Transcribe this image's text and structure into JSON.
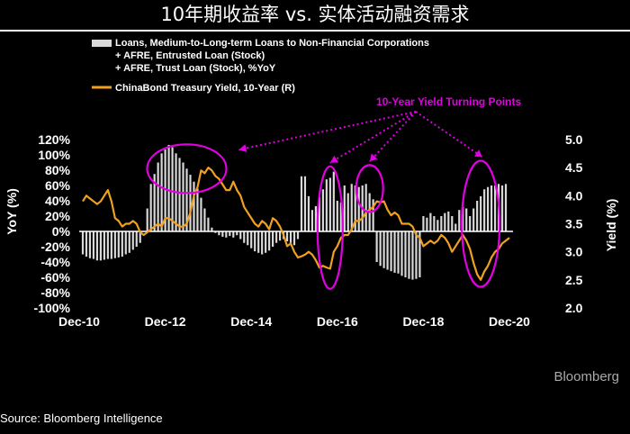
{
  "title": "10年期收益率 vs. 实体活动融资需求",
  "source": "Source: Bloomberg Intelligence",
  "brand": "Bloomberg",
  "colors": {
    "background": "#000000",
    "bars": "#d9d9d9",
    "line": "#f0a020",
    "annotation": "#e100e1",
    "text": "#ffffff"
  },
  "chart_data": {
    "type": "bar+line",
    "legend": [
      {
        "lines": [
          "Loans, Medium-to-Long-term Loans to Non-Financial Corporations",
          "+ AFRE, Entrusted Loan (Stock)",
          "+ AFRE, Trust Loan (Stock), %YoY"
        ],
        "marker": "bar"
      },
      {
        "lines": [
          "ChinaBond Treasury Yield, 10-Year (R)"
        ],
        "marker": "line"
      }
    ],
    "ylabel_left": "YoY (%)",
    "ylabel_right": "Yield (%)",
    "y_left_ticks": [
      "120%",
      "100%",
      "80%",
      "60%",
      "40%",
      "20%",
      "0%",
      "-20%",
      "-40%",
      "-60%",
      "-80%",
      "-100%"
    ],
    "y_left_lim": [
      -100,
      120
    ],
    "y_right_ticks": [
      "5.0",
      "4.5",
      "4.0",
      "3.5",
      "3.0",
      "2.5",
      "2.0"
    ],
    "y_right_lim": [
      2.0,
      5.0
    ],
    "x_ticks": [
      "Dec-10",
      "Dec-12",
      "Dec-14",
      "Dec-16",
      "Dec-18",
      "Dec-20"
    ],
    "x_range": [
      "2010-12",
      "2021-01"
    ],
    "annotation": "10-Year Yield Turning Points",
    "bars": {
      "name": "Loans, Medium-to-Long-term Loans to Non-Financial Corporations + AFRE, Entrusted Loan (Stock) + AFRE, Trust Loan (Stock), %YoY",
      "x": [
        "2011-01",
        "2011-02",
        "2011-03",
        "2011-04",
        "2011-05",
        "2011-06",
        "2011-07",
        "2011-08",
        "2011-09",
        "2011-10",
        "2011-11",
        "2011-12",
        "2012-01",
        "2012-02",
        "2012-03",
        "2012-04",
        "2012-05",
        "2012-06",
        "2012-07",
        "2012-08",
        "2012-09",
        "2012-10",
        "2012-11",
        "2012-12",
        "2013-01",
        "2013-02",
        "2013-03",
        "2013-04",
        "2013-05",
        "2013-06",
        "2013-07",
        "2013-08",
        "2013-09",
        "2013-10",
        "2013-11",
        "2013-12",
        "2014-01",
        "2014-02",
        "2014-03",
        "2014-04",
        "2014-05",
        "2014-06",
        "2014-07",
        "2014-08",
        "2014-09",
        "2014-10",
        "2014-11",
        "2014-12",
        "2015-01",
        "2015-02",
        "2015-03",
        "2015-04",
        "2015-05",
        "2015-06",
        "2015-07",
        "2015-08",
        "2015-09",
        "2015-10",
        "2015-11",
        "2015-12",
        "2016-01",
        "2016-02",
        "2016-03",
        "2016-04",
        "2016-05",
        "2016-06",
        "2016-07",
        "2016-08",
        "2016-09",
        "2016-10",
        "2016-11",
        "2016-12",
        "2017-01",
        "2017-02",
        "2017-03",
        "2017-04",
        "2017-05",
        "2017-06",
        "2017-07",
        "2017-08",
        "2017-09",
        "2017-10",
        "2017-11",
        "2017-12",
        "2018-01",
        "2018-02",
        "2018-03",
        "2018-04",
        "2018-05",
        "2018-06",
        "2018-07",
        "2018-08",
        "2018-09",
        "2018-10",
        "2018-11",
        "2018-12",
        "2019-01",
        "2019-02",
        "2019-03",
        "2019-04",
        "2019-05",
        "2019-06",
        "2019-07",
        "2019-08",
        "2019-09",
        "2019-10",
        "2019-11",
        "2019-12",
        "2020-01",
        "2020-02",
        "2020-03",
        "2020-04",
        "2020-05",
        "2020-06",
        "2020-07",
        "2020-08",
        "2020-09",
        "2020-10",
        "2020-11",
        "2020-12"
      ],
      "values": [
        -30,
        -33,
        -35,
        -36,
        -38,
        -38,
        -37,
        -36,
        -36,
        -35,
        -34,
        -33,
        -30,
        -28,
        -24,
        -20,
        -15,
        0,
        30,
        62,
        75,
        90,
        102,
        107,
        113,
        110,
        102,
        96,
        90,
        82,
        74,
        65,
        56,
        44,
        30,
        18,
        5,
        -2,
        -5,
        -7,
        -8,
        -6,
        -8,
        -5,
        -10,
        -15,
        -18,
        -22,
        -26,
        -28,
        -30,
        -28,
        -25,
        -20,
        -15,
        -12,
        -10,
        -13,
        -16,
        -18,
        -10,
        72,
        72,
        46,
        28,
        33,
        45,
        55,
        68,
        70,
        78,
        40,
        38,
        60,
        50,
        62,
        60,
        58,
        60,
        62,
        50,
        42,
        -40,
        -45,
        -48,
        -50,
        -52,
        -54,
        -55,
        -58,
        -60,
        -62,
        -63,
        -62,
        -60,
        20,
        18,
        24,
        20,
        15,
        20,
        24,
        26,
        20,
        10,
        28,
        32,
        30,
        20,
        30,
        40,
        46,
        55,
        58,
        60,
        60,
        62,
        60,
        62,
        0
      ]
    },
    "line": {
      "name": "ChinaBond Treasury Yield, 10-Year (R)",
      "x": [
        "2011-01",
        "2011-02",
        "2011-03",
        "2011-04",
        "2011-05",
        "2011-06",
        "2011-07",
        "2011-08",
        "2011-09",
        "2011-10",
        "2011-11",
        "2011-12",
        "2012-01",
        "2012-02",
        "2012-03",
        "2012-04",
        "2012-05",
        "2012-06",
        "2012-07",
        "2012-08",
        "2012-09",
        "2012-10",
        "2012-11",
        "2012-12",
        "2013-01",
        "2013-02",
        "2013-03",
        "2013-04",
        "2013-05",
        "2013-06",
        "2013-07",
        "2013-08",
        "2013-09",
        "2013-10",
        "2013-11",
        "2013-12",
        "2014-01",
        "2014-02",
        "2014-03",
        "2014-04",
        "2014-05",
        "2014-06",
        "2014-07",
        "2014-08",
        "2014-09",
        "2014-10",
        "2014-11",
        "2014-12",
        "2015-01",
        "2015-02",
        "2015-03",
        "2015-04",
        "2015-05",
        "2015-06",
        "2015-07",
        "2015-08",
        "2015-09",
        "2015-10",
        "2015-11",
        "2015-12",
        "2016-01",
        "2016-02",
        "2016-03",
        "2016-04",
        "2016-05",
        "2016-06",
        "2016-07",
        "2016-08",
        "2016-09",
        "2016-10",
        "2016-11",
        "2016-12",
        "2017-01",
        "2017-02",
        "2017-03",
        "2017-04",
        "2017-05",
        "2017-06",
        "2017-07",
        "2017-08",
        "2017-09",
        "2017-10",
        "2017-11",
        "2017-12",
        "2018-01",
        "2018-02",
        "2018-03",
        "2018-04",
        "2018-05",
        "2018-06",
        "2018-07",
        "2018-08",
        "2018-09",
        "2018-10",
        "2018-11",
        "2018-12",
        "2019-01",
        "2019-02",
        "2019-03",
        "2019-04",
        "2019-05",
        "2019-06",
        "2019-07",
        "2019-08",
        "2019-09",
        "2019-10",
        "2019-11",
        "2019-12",
        "2020-01",
        "2020-02",
        "2020-03",
        "2020-04",
        "2020-05",
        "2020-06",
        "2020-07",
        "2020-08",
        "2020-09",
        "2020-10",
        "2020-11",
        "2020-12"
      ],
      "values": [
        3.9,
        4.0,
        3.95,
        3.9,
        3.85,
        3.9,
        4.0,
        4.1,
        3.9,
        3.6,
        3.55,
        3.45,
        3.5,
        3.5,
        3.55,
        3.5,
        3.35,
        3.3,
        3.35,
        3.4,
        3.45,
        3.5,
        3.45,
        3.6,
        3.6,
        3.55,
        3.5,
        3.45,
        3.45,
        3.5,
        3.7,
        4.0,
        4.15,
        4.45,
        4.4,
        4.5,
        4.45,
        4.35,
        4.3,
        4.2,
        4.1,
        4.1,
        4.25,
        4.1,
        4.0,
        3.8,
        3.7,
        3.6,
        3.5,
        3.45,
        3.55,
        3.5,
        3.4,
        3.6,
        3.55,
        3.45,
        3.3,
        3.1,
        3.15,
        3.0,
        2.9,
        2.92,
        2.95,
        3.0,
        2.95,
        2.85,
        2.72,
        2.75,
        2.72,
        2.7,
        3.0,
        3.1,
        3.25,
        3.3,
        3.3,
        3.4,
        3.55,
        3.55,
        3.6,
        3.7,
        3.75,
        3.8,
        3.9,
        3.88,
        3.9,
        3.75,
        3.65,
        3.7,
        3.65,
        3.5,
        3.5,
        3.5,
        3.45,
        3.3,
        3.25,
        3.1,
        3.15,
        3.2,
        3.15,
        3.2,
        3.3,
        3.25,
        3.15,
        3.0,
        3.1,
        3.2,
        3.3,
        3.2,
        3.05,
        2.8,
        2.6,
        2.5,
        2.65,
        2.75,
        2.9,
        3.0,
        3.05,
        3.15,
        3.2,
        3.25
      ]
    },
    "highlight_ellipses_at": [
      "2013-06",
      "2016-10",
      "2017-09",
      "2020-04"
    ]
  }
}
